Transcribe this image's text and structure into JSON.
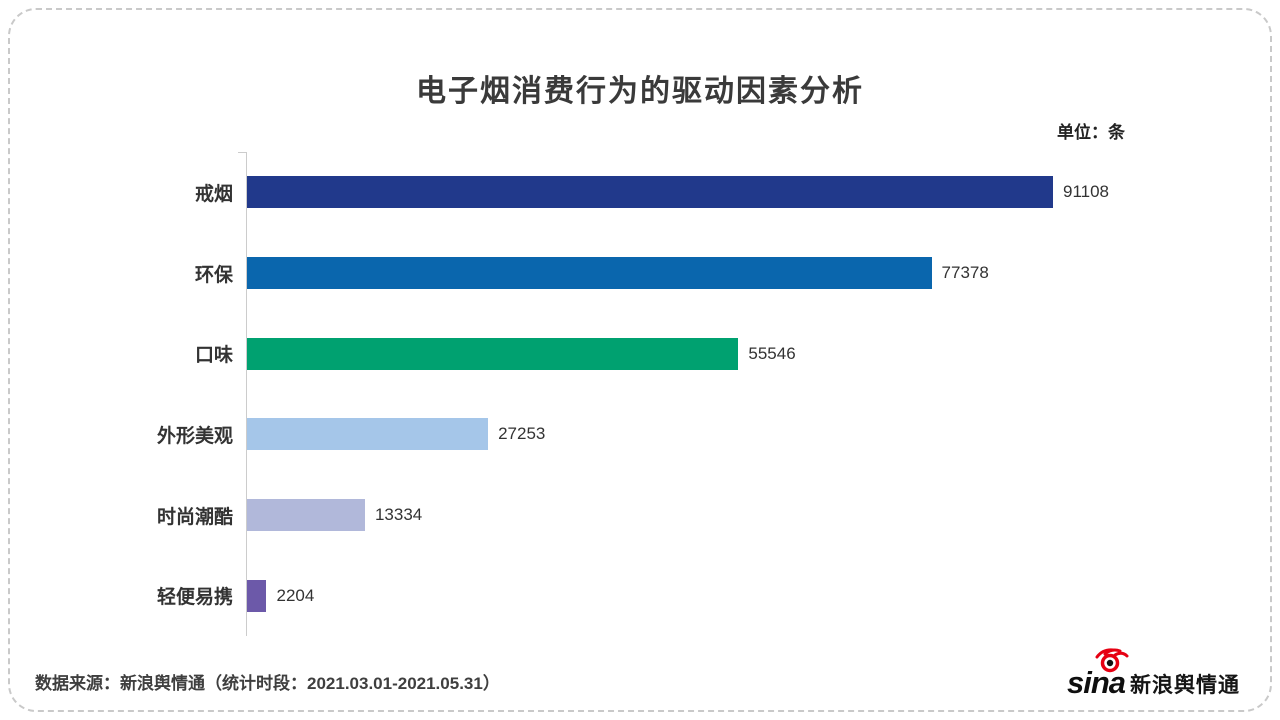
{
  "title": "电子烟消费行为的驱动因素分析",
  "unit_label": "单位：条",
  "source_note": "数据来源：新浪舆情通（统计时段：2021.03.01-2021.05.31）",
  "logo": {
    "sina_text": "sina",
    "brand_text": "新浪舆情通",
    "eye_color": "#e60012",
    "text_color": "#0f0f0f"
  },
  "chart_data": {
    "type": "bar",
    "orientation": "horizontal",
    "title": "电子烟消费行为的驱动因素分析",
    "unit": "条",
    "categories": [
      "戒烟",
      "环保",
      "口味",
      "外形美观",
      "时尚潮酷",
      "轻便易携"
    ],
    "values": [
      91108,
      77378,
      55546,
      27253,
      13334,
      2204
    ],
    "bar_colors": [
      "#21398B",
      "#0A66AD",
      "#00A170",
      "#A5C6E9",
      "#B1B8DA",
      "#6C59A9"
    ],
    "value_labels": true,
    "xlim": [
      0,
      100000
    ],
    "grid": false,
    "axis_line_color": "#cccccc",
    "legend": "none"
  }
}
